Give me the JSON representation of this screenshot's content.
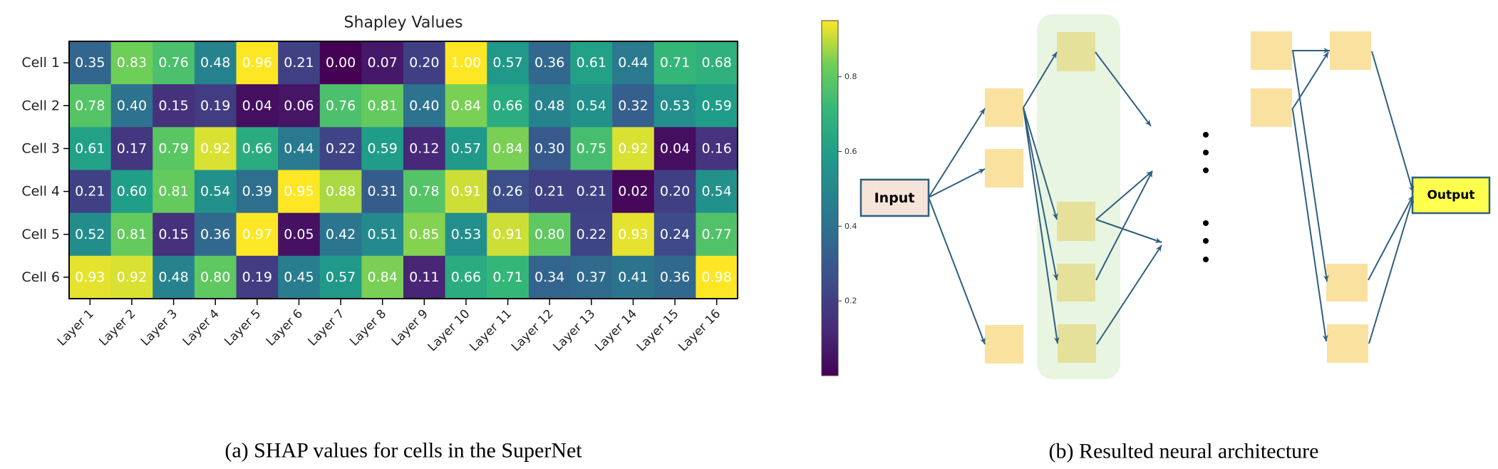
{
  "chart_data": {
    "type": "heatmap",
    "title": "Shapley Values",
    "rows": [
      "Cell 1",
      "Cell 2",
      "Cell 3",
      "Cell 4",
      "Cell 5",
      "Cell 6"
    ],
    "columns": [
      "Layer 1",
      "Layer 2",
      "Layer 3",
      "Layer 4",
      "Layer 5",
      "Layer 6",
      "Layer 7",
      "Layer 8",
      "Layer 9",
      "Layer 10",
      "Layer 11",
      "Layer 12",
      "Layer 13",
      "Layer 14",
      "Layer 15",
      "Layer 16"
    ],
    "values": [
      [
        0.35,
        0.83,
        0.76,
        0.48,
        0.96,
        0.21,
        0.0,
        0.07,
        0.2,
        1.0,
        0.57,
        0.36,
        0.61,
        0.44,
        0.71,
        0.68
      ],
      [
        0.78,
        0.4,
        0.15,
        0.19,
        0.04,
        0.06,
        0.76,
        0.81,
        0.4,
        0.84,
        0.66,
        0.48,
        0.54,
        0.32,
        0.53,
        0.59
      ],
      [
        0.61,
        0.17,
        0.79,
        0.92,
        0.66,
        0.44,
        0.22,
        0.59,
        0.12,
        0.57,
        0.84,
        0.3,
        0.75,
        0.92,
        0.04,
        0.16
      ],
      [
        0.21,
        0.6,
        0.81,
        0.54,
        0.39,
        0.95,
        0.88,
        0.31,
        0.78,
        0.91,
        0.26,
        0.21,
        0.21,
        0.02,
        0.2,
        0.54
      ],
      [
        0.52,
        0.81,
        0.15,
        0.36,
        0.97,
        0.05,
        0.42,
        0.51,
        0.85,
        0.53,
        0.91,
        0.8,
        0.22,
        0.93,
        0.24,
        0.77
      ],
      [
        0.93,
        0.92,
        0.48,
        0.8,
        0.19,
        0.45,
        0.57,
        0.84,
        0.11,
        0.66,
        0.71,
        0.34,
        0.37,
        0.41,
        0.36,
        0.98
      ]
    ],
    "colormap": "viridis",
    "colorbar": {
      "range": [
        0.0,
        0.95
      ],
      "ticks": [
        0.2,
        0.4,
        0.6,
        0.8
      ],
      "tick_labels": [
        "0.2",
        "0.4",
        "0.6",
        "0.8"
      ]
    },
    "caption": "(a) SHAP values for cells in the SuperNet"
  },
  "diagram": {
    "input_label": "Input",
    "output_label": "Output",
    "caption": "(b) Resulted neural architecture",
    "colors": {
      "node": "#f9e1a0",
      "highlight_node": "#e5e09a",
      "highlight_bg": "#e8f5e1",
      "input_fill": "#f5e4d9",
      "output_fill": "#ffff4d",
      "edge": "#2e5f80"
    }
  }
}
